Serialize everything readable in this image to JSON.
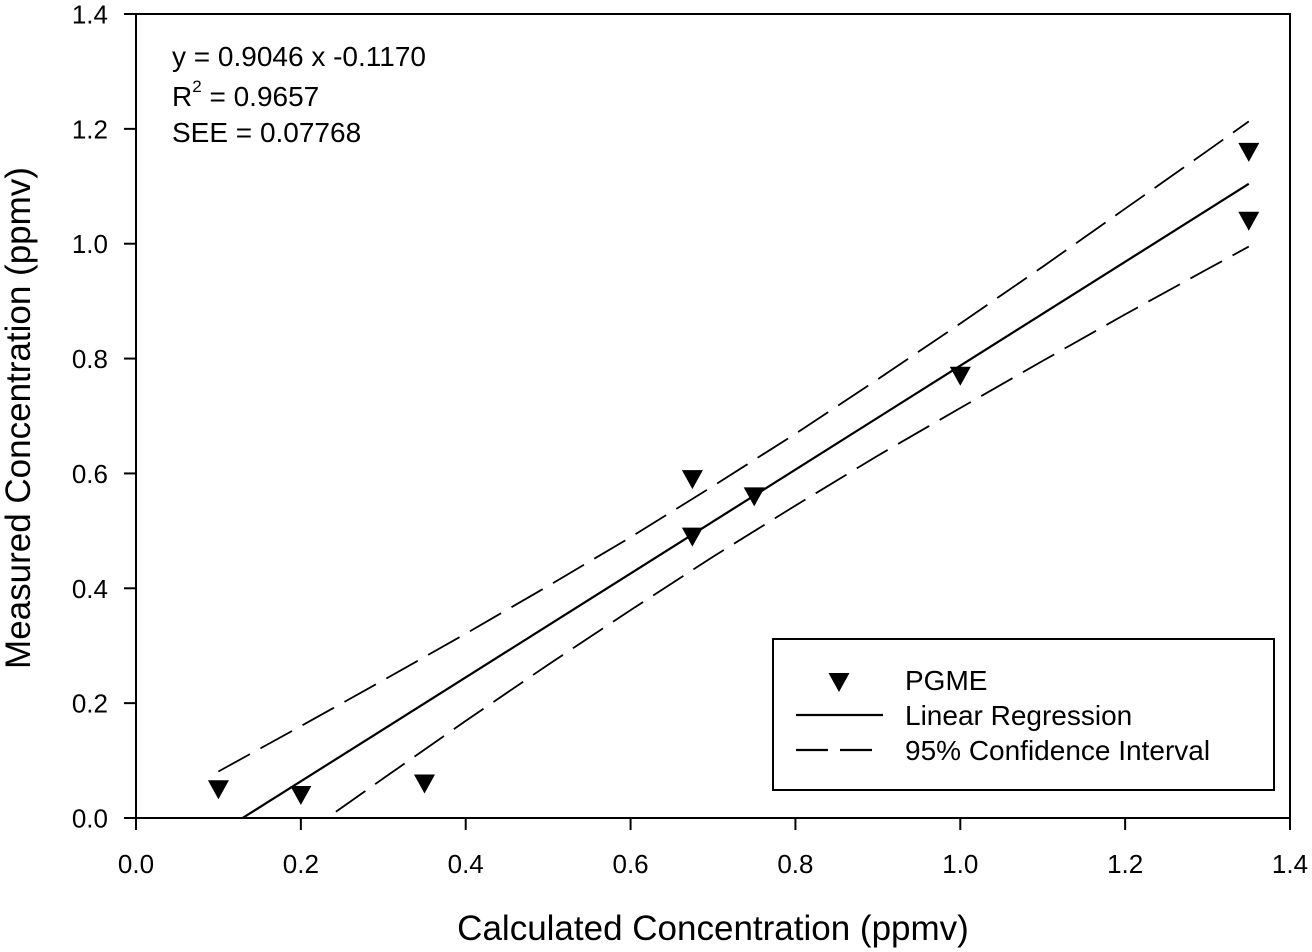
{
  "chart_data": {
    "type": "scatter",
    "title": "",
    "xlabel": "Calculated Concentration (ppmv)",
    "ylabel": "Measured Concentration (ppmv)",
    "xlim": [
      0,
      1.4
    ],
    "ylim": [
      0,
      1.4
    ],
    "x_ticks": [
      0,
      0.2,
      0.4,
      0.6,
      0.8,
      1.0,
      1.2,
      1.4
    ],
    "x_tick_labels": [
      "0.0",
      "0.2",
      "0.4",
      "0.6",
      "0.8",
      "1.0",
      "1.2",
      "1.4"
    ],
    "y_ticks": [
      0,
      0.2,
      0.4,
      0.6,
      0.8,
      1.0,
      1.2,
      1.4
    ],
    "y_tick_labels": [
      "0.0",
      "0.2",
      "0.4",
      "0.6",
      "0.8",
      "1.0",
      "1.2",
      "1.4"
    ],
    "grid": false,
    "annotation": {
      "equation": "y = 0.9046 x -0.1170",
      "r2_symbol": "R",
      "r2_superscript": "2",
      "r2_value": " = 0.9657",
      "see": "SEE = 0.07768"
    },
    "legend": {
      "position": "bottom-right",
      "entries": [
        {
          "label": "PGME",
          "type": "marker-triangle-down"
        },
        {
          "label": "Linear Regression",
          "type": "solid-line"
        },
        {
          "label": "95% Confidence Interval",
          "type": "dashed-line"
        }
      ]
    },
    "series": [
      {
        "name": "PGME",
        "type": "scatter",
        "marker": "triangle-down",
        "color": "#000000",
        "x": [
          0.1,
          0.2,
          0.35,
          0.675,
          0.675,
          0.75,
          1.0,
          1.35,
          1.35
        ],
        "y": [
          0.05,
          0.04,
          0.06,
          0.59,
          0.49,
          0.56,
          0.77,
          1.16,
          1.04
        ]
      },
      {
        "name": "Linear Regression",
        "type": "line",
        "style": "solid",
        "color": "#000000",
        "slope": 0.9046,
        "intercept": -0.117,
        "x_range": [
          0.1,
          1.35
        ]
      },
      {
        "name": "95% Confidence Interval",
        "type": "line",
        "style": "dashed",
        "color": "#000000",
        "x": [
          0.1,
          0.2,
          0.3,
          0.4,
          0.5,
          0.6,
          0.7,
          0.8,
          0.9,
          1.0,
          1.1,
          1.2,
          1.3,
          1.35
        ],
        "upper": [
          0.081,
          0.16,
          0.24,
          0.321,
          0.404,
          0.489,
          0.578,
          0.669,
          0.764,
          0.861,
          0.96,
          1.061,
          1.162,
          1.213
        ],
        "lower": [
          -0.134,
          -0.032,
          0.069,
          0.169,
          0.267,
          0.362,
          0.455,
          0.544,
          0.631,
          0.714,
          0.796,
          0.877,
          0.956,
          0.995
        ]
      }
    ]
  }
}
